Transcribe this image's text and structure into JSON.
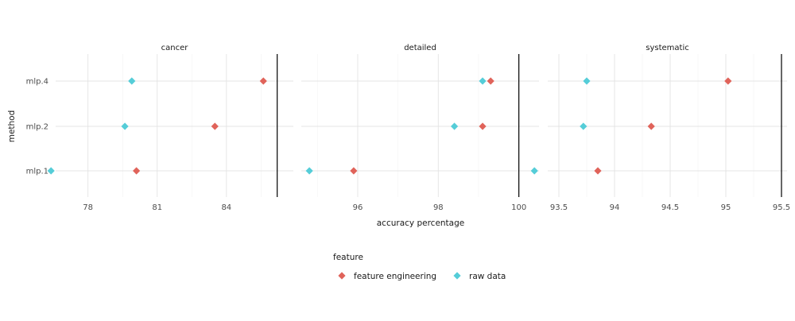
{
  "chart_data": {
    "type": "scatter",
    "xlabel": "accuracy percentage",
    "ylabel": "method",
    "categories": [
      "mlp.1",
      "mlp.2",
      "mlp.4"
    ],
    "legend": {
      "title": "feature",
      "position": "bottom",
      "entries": [
        {
          "name": "feature engineering",
          "color": "#E0635A"
        },
        {
          "name": "raw data",
          "color": "#55CDD8"
        }
      ]
    },
    "grid": true,
    "marker": "diamond",
    "facets": [
      {
        "label": "cancer",
        "xlim": [
          76.6,
          86.9
        ],
        "xticks": [
          78,
          81,
          84
        ],
        "xtick_labels": [
          "78",
          "81",
          "84"
        ],
        "vline": 86.2,
        "series": [
          {
            "name": "feature engineering",
            "values": {
              "mlp.1": 80.1,
              "mlp.2": 83.5,
              "mlp.4": 85.6
            }
          },
          {
            "name": "raw data",
            "values": {
              "mlp.1": 76.4,
              "mlp.2": 79.6,
              "mlp.4": 79.9
            }
          }
        ]
      },
      {
        "label": "detailed",
        "xlim": [
          94.6,
          100.5
        ],
        "xticks": [
          96,
          98,
          100
        ],
        "xtick_labels": [
          "96",
          "98",
          "100"
        ],
        "vline": 100.0,
        "series": [
          {
            "name": "feature engineering",
            "values": {
              "mlp.1": 95.9,
              "mlp.2": 99.1,
              "mlp.4": 99.3
            }
          },
          {
            "name": "raw data",
            "values": {
              "mlp.1": 94.8,
              "mlp.2": 98.4,
              "mlp.4": 99.1
            }
          }
        ]
      },
      {
        "label": "systematic",
        "xlim": [
          93.4,
          95.55
        ],
        "xticks": [
          93.5,
          94,
          94.5,
          95,
          95.5
        ],
        "xtick_labels": [
          "93.5",
          "94",
          "94.5",
          "95",
          "95.5"
        ],
        "vline": 95.5,
        "series": [
          {
            "name": "feature engineering",
            "values": {
              "mlp.1": 93.85,
              "mlp.2": 94.33,
              "mlp.4": 95.02
            }
          },
          {
            "name": "raw data",
            "values": {
              "mlp.1": 93.28,
              "mlp.2": 93.72,
              "mlp.4": 93.75
            }
          }
        ]
      }
    ]
  }
}
